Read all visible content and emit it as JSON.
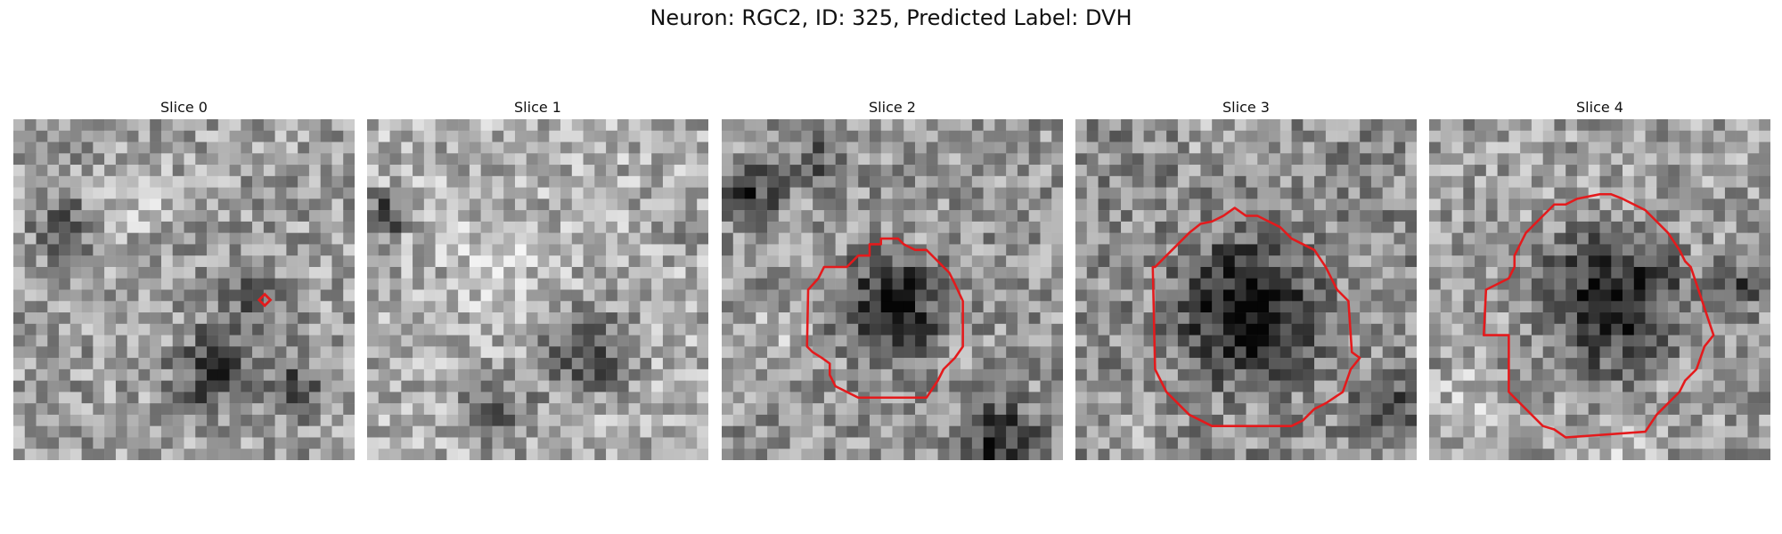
{
  "figure": {
    "title": "Neuron: RGC2, ID: 325, Predicted Label: DVH"
  },
  "panels": [
    {
      "title": "Slice 0",
      "roi": "marker"
    },
    {
      "title": "Slice 1",
      "roi": "none"
    },
    {
      "title": "Slice 2",
      "roi": "small-contour"
    },
    {
      "title": "Slice 3",
      "roi": "large-contour"
    },
    {
      "title": "Slice 4",
      "roi": "large-contour"
    }
  ],
  "colors": {
    "contour": "#e41a1c"
  }
}
